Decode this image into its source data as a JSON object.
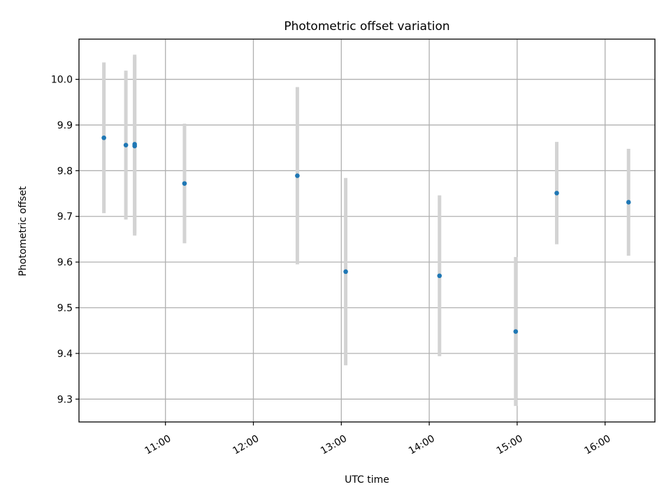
{
  "chart_data": {
    "type": "scatter",
    "title": "Photometric offset variation",
    "xlabel": "UTC time",
    "ylabel": "Photometric offset",
    "x_ticks": [
      "11:00",
      "12:00",
      "13:00",
      "14:00",
      "15:00",
      "16:00"
    ],
    "y_ticks": [
      "9.3",
      "9.4",
      "9.5",
      "9.6",
      "9.7",
      "9.8",
      "9.9",
      "10.0"
    ],
    "xlim": [
      "10:01",
      "16:34"
    ],
    "ylim": [
      9.25,
      10.088
    ],
    "grid": true,
    "marker_color": "#1f77b4",
    "errorbar_color": "#d3d3d3",
    "points": [
      {
        "time": "10:18",
        "y": 9.872,
        "yerr": 0.165
      },
      {
        "time": "10:33",
        "y": 9.856,
        "yerr": 0.163
      },
      {
        "time": "10:39",
        "y": 9.858,
        "yerr": 0.196
      },
      {
        "time": "10:39",
        "y": 9.854,
        "yerr": 0.196
      },
      {
        "time": "11:13",
        "y": 9.772,
        "yerr": 0.131
      },
      {
        "time": "12:30",
        "y": 9.789,
        "yerr": 0.194
      },
      {
        "time": "13:03",
        "y": 9.579,
        "yerr": 0.205
      },
      {
        "time": "14:07",
        "y": 9.57,
        "yerr": 0.176
      },
      {
        "time": "14:59",
        "y": 9.448,
        "yerr": 0.163
      },
      {
        "time": "15:27",
        "y": 9.751,
        "yerr": 0.112
      },
      {
        "time": "16:16",
        "y": 9.731,
        "yerr": 0.117
      }
    ]
  }
}
